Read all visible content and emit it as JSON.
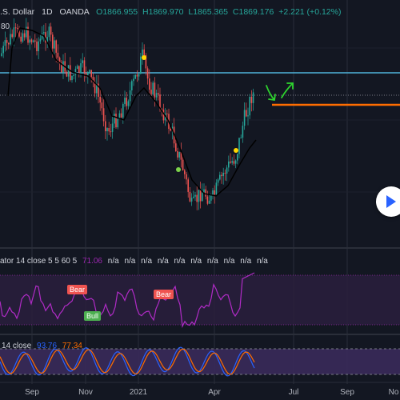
{
  "header": {
    "symbol": ".S. Dollar",
    "interval": "1D",
    "exchange": "OANDA",
    "open": "O1866.955",
    "high": "H1869.970",
    "low": "L1865.365",
    "close": "C1869.176",
    "change": "+2.221 (+0.12%)",
    "top_left_price": "80"
  },
  "indicator1": {
    "label": "ator 14 close 5 5 60 5",
    "value": "71.06",
    "na_values": [
      "n/a",
      "n/a",
      "n/a",
      "n/a",
      "n/a",
      "n/a",
      "n/a",
      "n/a",
      "n/a",
      "n/a"
    ],
    "bear_label": "Bear",
    "bull_label": "Bull",
    "bear_label_2": "Bear"
  },
  "indicator2": {
    "label": "14 close",
    "value_k": "93.76",
    "value_d": "77.34"
  },
  "xaxis": {
    "labels": [
      "Sep",
      "Nov",
      "2021",
      "Apr",
      "Jul",
      "Sep",
      "No"
    ]
  },
  "colors": {
    "background": "#131722",
    "up": "#26a69a",
    "down": "#ef5350",
    "ma": "#000000",
    "hline": "#4fb3d9",
    "orange_line": "#ff6d00",
    "arrow": "#2ed42e",
    "osc": "#9c27b0",
    "stoch_k": "#2962ff",
    "stoch_d": "#ff6d00"
  },
  "icons": {
    "play": "play-icon",
    "arrow_down": "arrow-down-right-icon",
    "arrow_up": "arrow-up-right-icon"
  }
}
